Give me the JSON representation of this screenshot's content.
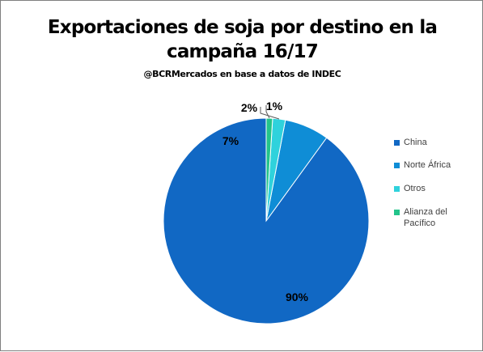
{
  "chart_data": {
    "type": "pie",
    "title": "Exportaciones de soja por destino en la campaña 16/17",
    "subtitle": "@BCRMercados en base a datos de INDEC",
    "slices": [
      {
        "name": "China",
        "value": 90,
        "label": "90%",
        "color": "#1168c4"
      },
      {
        "name": "Norte África",
        "value": 7,
        "label": "7%",
        "color": "#0f8dd6"
      },
      {
        "name": "Otros",
        "value": 2,
        "label": "2%",
        "color": "#2fd2dc"
      },
      {
        "name": "Alianza del Pacífico",
        "value": 1,
        "label": "1%",
        "color": "#23c48a"
      }
    ],
    "legend_position": "right"
  }
}
